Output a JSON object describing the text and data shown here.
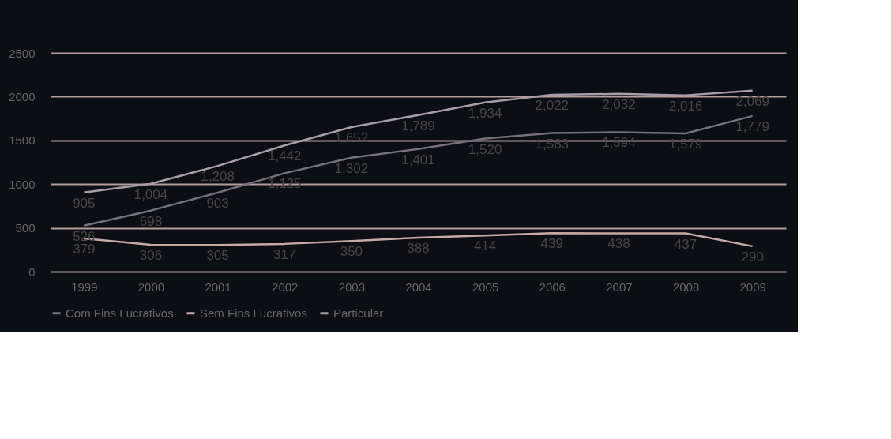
{
  "chart_data": {
    "type": "line",
    "categories": [
      "1999",
      "2000",
      "2001",
      "2002",
      "2003",
      "2004",
      "2005",
      "2006",
      "2007",
      "2008",
      "2009"
    ],
    "series": [
      {
        "name": "Com Fins Lucrativos",
        "color": "#75707a",
        "values": [
          526,
          698,
          903,
          1125,
          1302,
          1401,
          1520,
          1583,
          1594,
          1579,
          1779
        ],
        "value_labels": [
          "526",
          "698",
          "903",
          "1,125",
          "1,302",
          "1,401",
          "1,520",
          "1,583",
          "1,594",
          "1,579",
          "1,779"
        ]
      },
      {
        "name": "Sem Fins Lucrativos",
        "color": "#c9a9a8",
        "values": [
          379,
          306,
          305,
          317,
          350,
          388,
          414,
          439,
          438,
          437,
          290
        ],
        "value_labels": [
          "379",
          "306",
          "305",
          "317",
          "350",
          "388",
          "414",
          "439",
          "438",
          "437",
          "290"
        ]
      },
      {
        "name": "Particular",
        "color": "#aa9ea6",
        "values": [
          905,
          1004,
          1208,
          1442,
          1652,
          1789,
          1934,
          2022,
          2032,
          2016,
          2069
        ],
        "value_labels": [
          "905",
          "1,004",
          "1,208",
          "1,442",
          "1,652",
          "1,789",
          "1,934",
          "2,022",
          "2,032",
          "2,016",
          "2,069"
        ]
      }
    ],
    "ylim": [
      0,
      2500
    ],
    "yticks": [
      0,
      500,
      1000,
      1500,
      2000,
      2500
    ],
    "grid": "y",
    "legend": "bottom",
    "marker": "none",
    "line_style": "solid"
  }
}
